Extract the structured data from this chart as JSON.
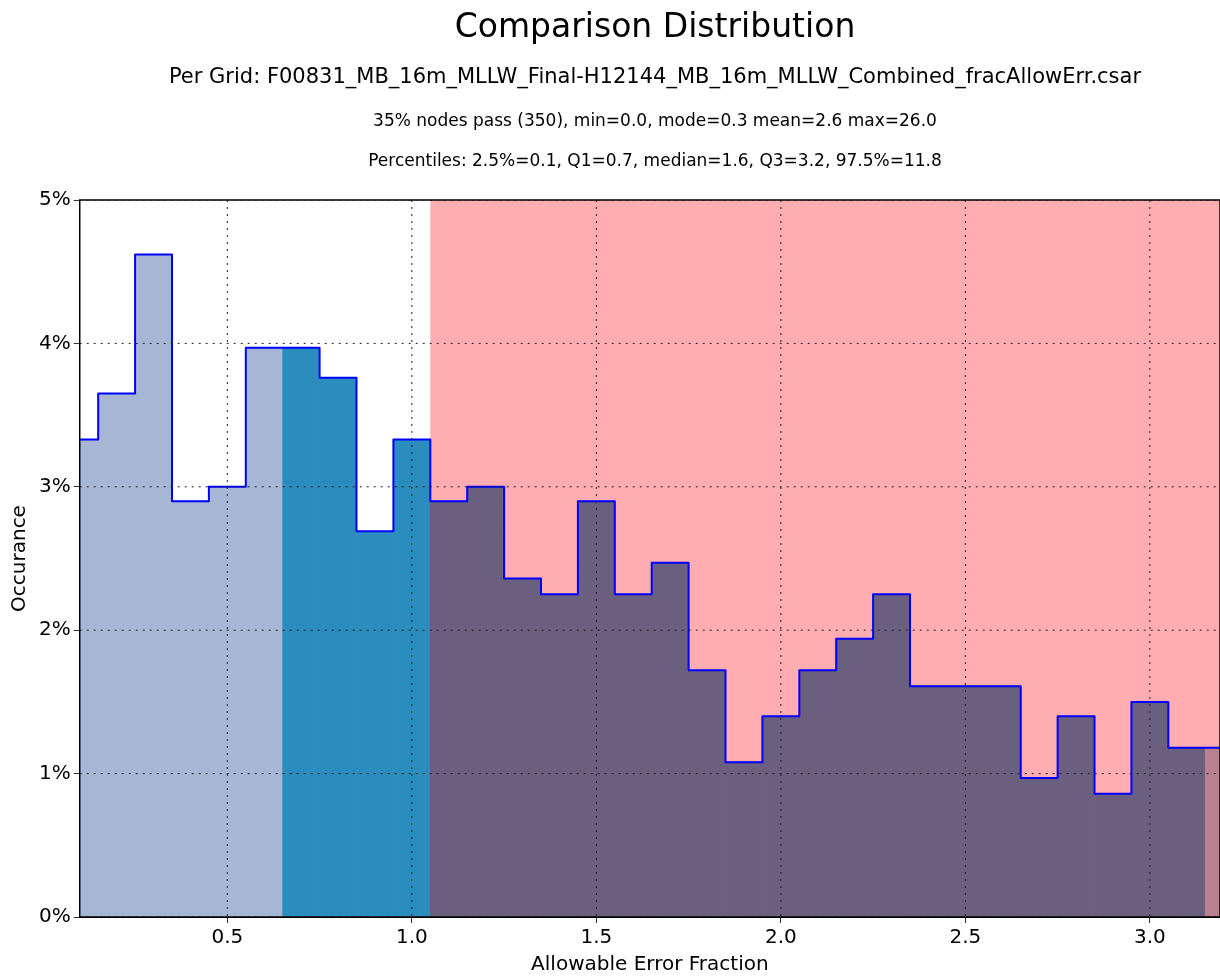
{
  "chart_data": {
    "type": "histogram",
    "title": "Comparison Distribution",
    "subtitle": "Per Grid: F00831_MB_16m_MLLW_Final-H12144_MB_16m_MLLW_Combined_fracAllowErr.csar",
    "annotations": [
      "35% nodes pass (350), min=0.0, mode=0.3 mean=2.6 max=26.0",
      "Percentiles: 2.5%=0.1, Q1=0.7, median=1.6, Q3=3.2, 97.5%=11.8"
    ],
    "xlabel": "Allowable Error Fraction",
    "ylabel": "Occurance",
    "bins": [
      0.05,
      0.15,
      0.25,
      0.35,
      0.45,
      0.55,
      0.65,
      0.75,
      0.85,
      0.95,
      1.05,
      1.15,
      1.25,
      1.35,
      1.45,
      1.55,
      1.65,
      1.75,
      1.85,
      1.95,
      2.05,
      2.15,
      2.25,
      2.35,
      2.45,
      2.55,
      2.65,
      2.75,
      2.85,
      2.95,
      3.05,
      3.15,
      3.25
    ],
    "series": [
      {
        "values": [
          3.33,
          3.65,
          4.62,
          2.9,
          3.0,
          3.97,
          3.97,
          3.76,
          2.69,
          3.33,
          2.9,
          3.0,
          2.36,
          2.25,
          2.9,
          2.25,
          2.47,
          1.72,
          1.08,
          1.4,
          1.72,
          1.94,
          2.25,
          1.61,
          1.61,
          1.61,
          0.97,
          1.4,
          0.86,
          1.5,
          1.18,
          1.18
        ],
        "colors": [
          "#a6b7d6",
          "#a6b7d6",
          "#a6b7d6",
          "#a6b7d6",
          "#a6b7d6",
          "#a6b7d6",
          "#2b8cbe",
          "#2b8cbe",
          "#2b8cbe",
          "#2b8cbe",
          "#6a5f7f",
          "#6a5f7f",
          "#6a5f7f",
          "#6a5f7f",
          "#6a5f7f",
          "#6a5f7f",
          "#6a5f7f",
          "#6a5f7f",
          "#6a5f7f",
          "#6a5f7f",
          "#6a5f7f",
          "#6a5f7f",
          "#6a5f7f",
          "#6a5f7f",
          "#6a5f7f",
          "#6a5f7f",
          "#6a5f7f",
          "#6a5f7f",
          "#6a5f7f",
          "#6a5f7f",
          "#6a5f7f",
          "#b9808f"
        ]
      },
      {
        "type": "step",
        "color": "#0000ff",
        "x": [
          0.1,
          0.15,
          0.25,
          0.35,
          0.45,
          0.55,
          0.65,
          0.75,
          0.85,
          0.95,
          1.05,
          1.15,
          1.25,
          1.35,
          1.45,
          1.55,
          1.65,
          1.75,
          1.85,
          1.95,
          2.05,
          2.15,
          2.25,
          2.35,
          2.45,
          2.55,
          2.65,
          2.75,
          2.85,
          2.95,
          3.05,
          3.15,
          3.19
        ],
        "values": [
          3.33,
          3.65,
          4.62,
          2.9,
          3.0,
          3.97,
          3.97,
          3.76,
          2.69,
          3.33,
          2.9,
          3.0,
          2.36,
          2.25,
          2.9,
          2.25,
          2.47,
          1.72,
          1.08,
          1.4,
          1.72,
          1.94,
          2.25,
          1.61,
          1.61,
          1.61,
          0.97,
          1.4,
          0.86,
          1.5,
          1.18,
          1.18,
          1.18
        ]
      }
    ],
    "bands": [
      {
        "axis": "x",
        "from": 1.05,
        "to": 3.19,
        "color": "#ffadb0"
      }
    ],
    "xlim": [
      0.1,
      3.19
    ],
    "xticks": [
      {
        "value": 0.5,
        "label": "0.5"
      },
      {
        "value": 1.0,
        "label": "1.0"
      },
      {
        "value": 1.5,
        "label": "1.5"
      },
      {
        "value": 2.0,
        "label": "2.0"
      },
      {
        "value": 2.5,
        "label": "2.5"
      },
      {
        "value": 3.0,
        "label": "3.0"
      }
    ],
    "ylim": [
      0,
      5
    ],
    "yticks": [
      {
        "value": 0,
        "label": "0%"
      },
      {
        "value": 1,
        "label": "1%"
      },
      {
        "value": 2,
        "label": "2%"
      },
      {
        "value": 3,
        "label": "3%"
      },
      {
        "value": 4,
        "label": "4%"
      },
      {
        "value": 5,
        "label": "5%"
      }
    ],
    "grid": true,
    "legend": false
  }
}
